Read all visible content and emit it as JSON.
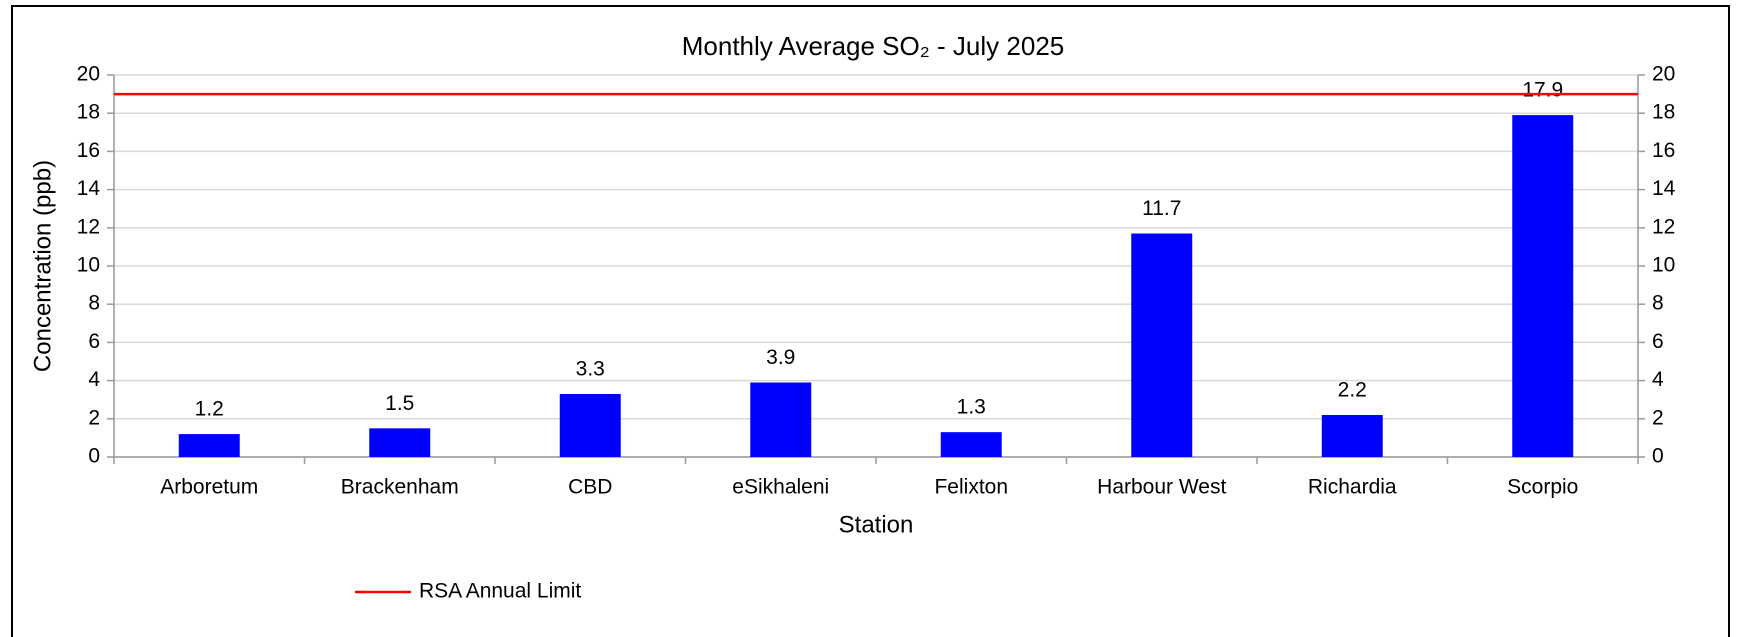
{
  "chart_data": {
    "type": "bar",
    "title": "Monthly Average  SO₂ - July 2025",
    "x_label": "Station",
    "y_label": "Concentration (ppb)",
    "categories": [
      "Arboretum",
      "Brackenham",
      "CBD",
      "eSikhaleni",
      "Felixton",
      "Harbour West",
      "Richardia",
      "Scorpio"
    ],
    "values": [
      1.2,
      1.5,
      3.3,
      3.9,
      1.3,
      11.7,
      2.2,
      17.9
    ],
    "color": "#0000ff",
    "ylim": [
      0,
      20
    ],
    "yticks": [
      0,
      2,
      4,
      6,
      8,
      10,
      12,
      14,
      16,
      18,
      20
    ],
    "y2lim": [
      0,
      20
    ],
    "y2ticks": [
      0,
      2,
      4,
      6,
      8,
      10,
      12,
      14,
      16,
      18,
      20
    ],
    "grid": true,
    "limit_line": {
      "name": "RSA Annual Limit",
      "value": 19,
      "color": "#ff0000"
    },
    "legend": "bottom-left"
  }
}
